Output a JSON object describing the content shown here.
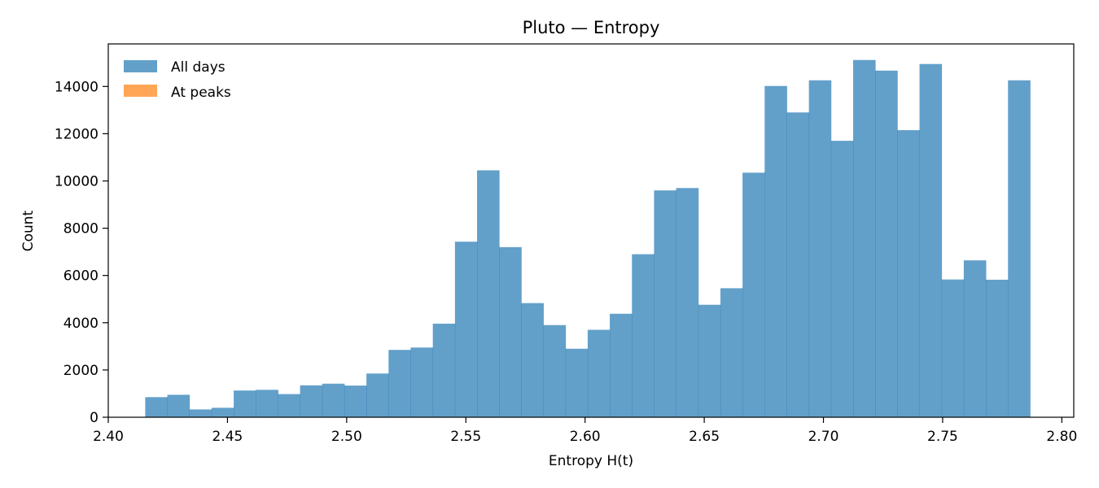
{
  "chart_data": {
    "type": "bar",
    "subtype": "histogram",
    "title": "Pluto — Entropy",
    "xlabel": "Entropy H(t)",
    "ylabel": "Count",
    "xlim": [
      2.4,
      2.805
    ],
    "ylim": [
      0,
      15800
    ],
    "xticks": [
      "2.40",
      "2.45",
      "2.50",
      "2.55",
      "2.60",
      "2.65",
      "2.70",
      "2.75",
      "2.80"
    ],
    "yticks": [
      "0",
      "2000",
      "4000",
      "6000",
      "8000",
      "10000",
      "12000",
      "14000"
    ],
    "bin_start": 2.4155,
    "bin_width": 0.00928,
    "series": [
      {
        "name": "All days",
        "color": "#1f77b4",
        "opacity": 0.7,
        "values": [
          850,
          950,
          330,
          400,
          1130,
          1160,
          980,
          1350,
          1420,
          1340,
          1850,
          2850,
          2950,
          3960,
          7430,
          10450,
          7200,
          4830,
          3900,
          2900,
          3700,
          4380,
          6900,
          9600,
          9700,
          4760,
          5460,
          10350,
          14020,
          12900,
          14260,
          11700,
          15120,
          14670,
          12150,
          14950,
          5830,
          6640,
          5820,
          14260
        ]
      },
      {
        "name": "At peaks",
        "color": "#ff7f0e",
        "opacity": 0.7,
        "values": []
      }
    ],
    "grid": false,
    "legend_position": "top-left"
  }
}
